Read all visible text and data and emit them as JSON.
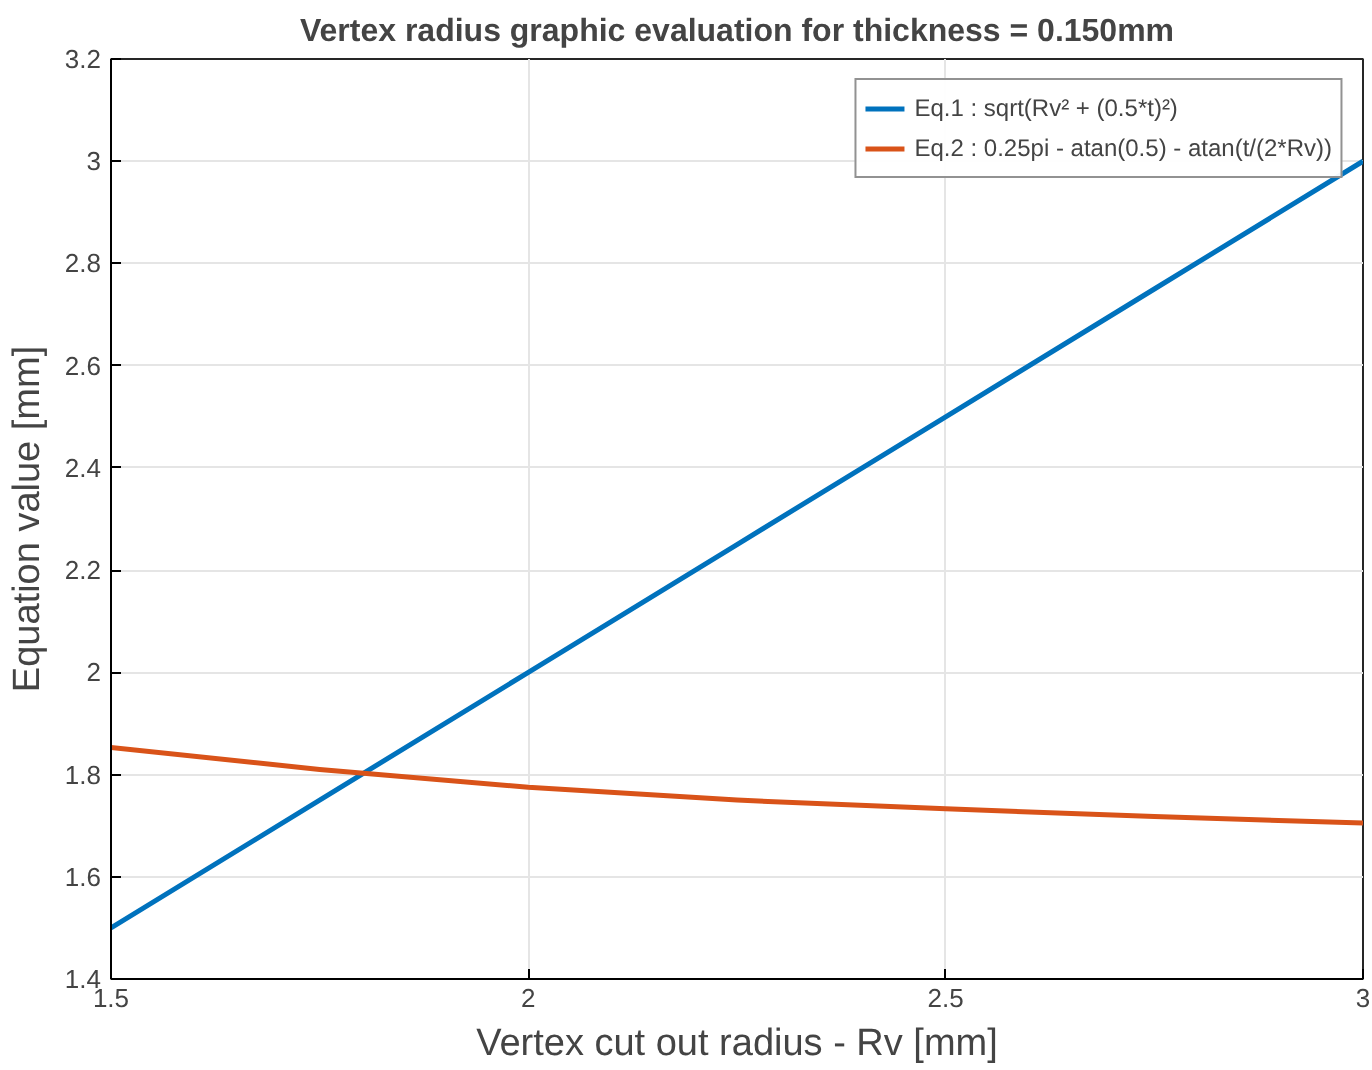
{
  "chart_data": {
    "type": "line",
    "title": "Vertex radius graphic evaluation for thickness = 0.150mm",
    "xlabel": "Vertex cut out radius - Rv [mm]",
    "ylabel": "Equation value [mm]",
    "x": [
      1.5,
      1.75,
      2,
      2.25,
      2.5,
      2.75,
      3
    ],
    "series": [
      {
        "name": "Eq.1 : sqrt(Rv² + (0.5*t)²)",
        "color": "#0072bd",
        "values": [
          1.5,
          1.75,
          2.0,
          2.25,
          2.5,
          2.75,
          3.0
        ]
      },
      {
        "name": "Eq.2 : 0.25pi - atan(0.5) - atan(t/(2*Rv))",
        "color": "#d95319",
        "values": [
          1.853,
          1.81,
          1.775,
          1.75,
          1.733,
          1.718,
          1.705
        ]
      }
    ],
    "xlim": [
      1.5,
      3
    ],
    "xticks": [
      1.5,
      2,
      2.5,
      3
    ],
    "ylim": [
      1.4,
      3.2
    ],
    "yticks": [
      1.4,
      1.6,
      1.8,
      2,
      2.2,
      2.4,
      2.6,
      2.8,
      3,
      3.2
    ],
    "grid": true,
    "legend": "top right",
    "line_style": "solid",
    "marker": "none"
  }
}
